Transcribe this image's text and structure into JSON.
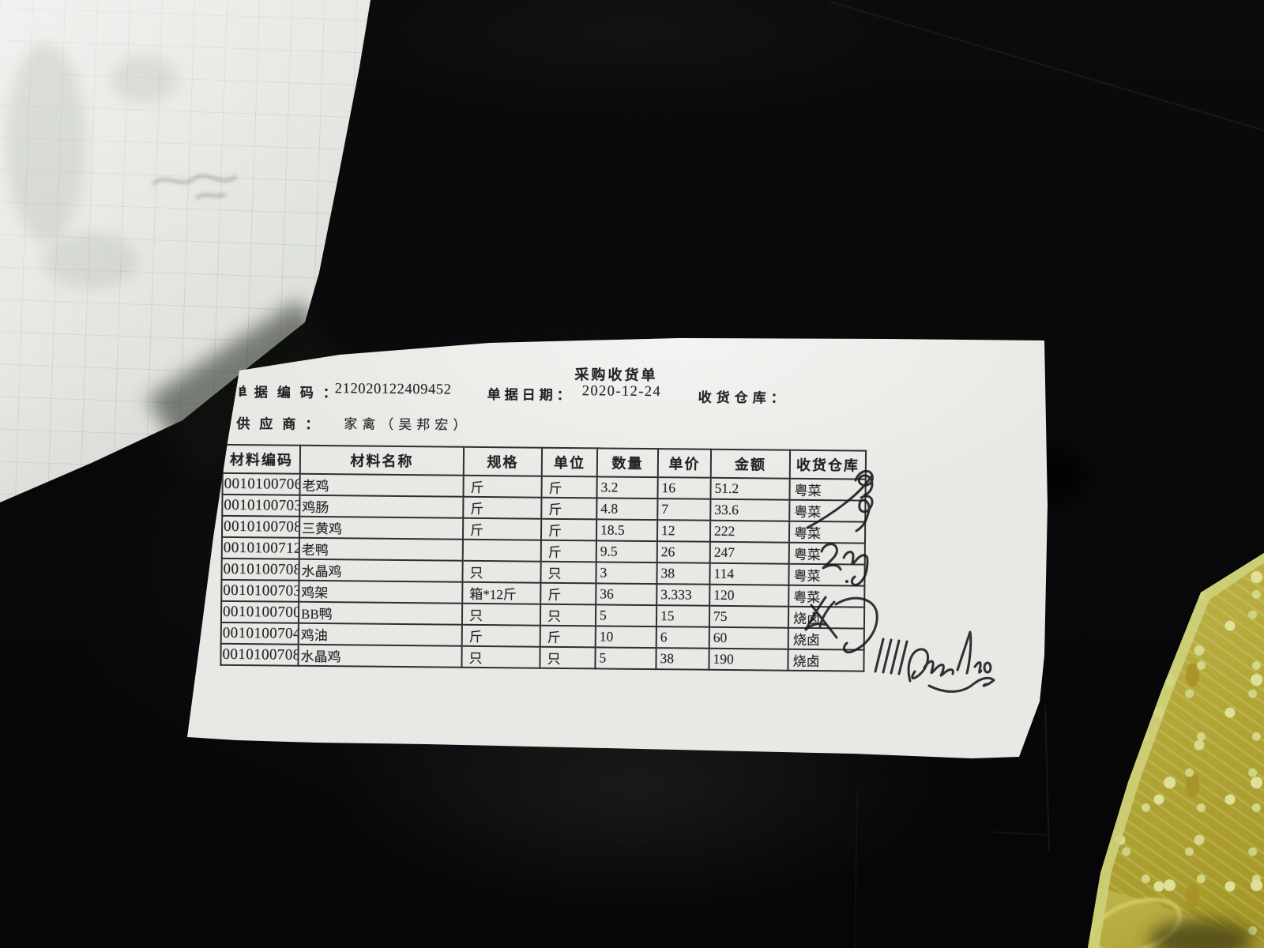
{
  "receipt": {
    "title": "采购收货单",
    "doc_code": {
      "clipped_char": "单",
      "label": "据编码：",
      "value": "212020122409452"
    },
    "doc_date": {
      "label": "单据日期：",
      "value": "2020-12-24"
    },
    "warehouse_field": {
      "label": "收货仓库：",
      "value": ""
    },
    "supplier": {
      "label": "供应商：",
      "value": "家禽（吴邦宏）"
    },
    "table": {
      "headers": [
        "材料编码",
        "材料名称",
        "规格",
        "单位",
        "数量",
        "单价",
        "金额",
        "收货仓库"
      ],
      "rows": [
        [
          "0010100706",
          "老鸡",
          "斤",
          "斤",
          "3.2",
          "16",
          "51.2",
          "粤菜"
        ],
        [
          "0010100703",
          "鸡肠",
          "斤",
          "斤",
          "4.8",
          "7",
          "33.6",
          "粤菜"
        ],
        [
          "0010100708",
          "三黄鸡",
          "斤",
          "斤",
          "18.5",
          "12",
          "222",
          "粤菜"
        ],
        [
          "0010100712",
          "老鸭",
          "",
          "斤",
          "9.5",
          "26",
          "247",
          "粤菜"
        ],
        [
          "0010100708",
          "水晶鸡",
          "只",
          "只",
          "3",
          "38",
          "114",
          "粤菜"
        ],
        [
          "0010100703",
          "鸡架",
          "箱*12斤",
          "斤",
          "36",
          "3.333",
          "120",
          "粤菜"
        ],
        [
          "0010100700",
          "BB鸭",
          "只",
          "只",
          "5",
          "15",
          "75",
          "烧卤"
        ],
        [
          "0010100704",
          "鸡油",
          "斤",
          "斤",
          "10",
          "6",
          "60",
          "烧卤"
        ],
        [
          "0010100708",
          "水晶鸡",
          "只",
          "只",
          "5",
          "38",
          "190",
          "烧卤"
        ]
      ]
    },
    "handwriting": {
      "tally_marks": "||||",
      "annotations": [
        "flourish-loop-scribble",
        "numeral-2-scribble",
        "cross-out-scribble",
        "cursive-signature"
      ]
    }
  },
  "colors": {
    "paper": "#e7e9e4",
    "grid_paper": "#d3d7cf",
    "print_ink": "#232327",
    "pen_ink": "#17171a",
    "background": "#0b0b0c",
    "fabric_base": "#b3a73c",
    "fabric_pattern": "#dde29a"
  }
}
